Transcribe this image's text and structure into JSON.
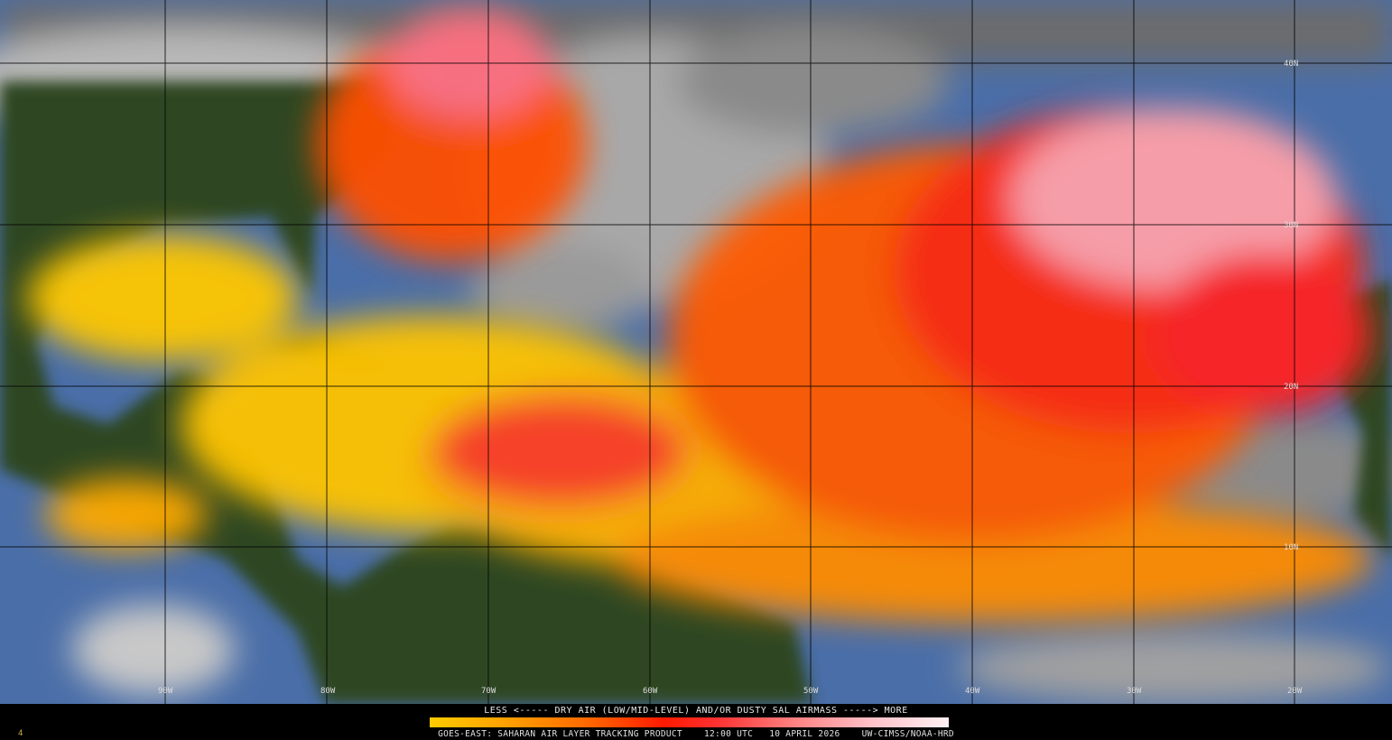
{
  "product": {
    "legend_title": "LESS <----- DRY AIR (LOW/MID-LEVEL) AND/OR DUSTY SAL AIRMASS -----> MORE",
    "credit": "GOES-EAST: SAHARAN AIR LAYER TRACKING PRODUCT    12:00 UTC   10 APRIL 2026    UW-CIMSS/NOAA-HRD",
    "corner_mark": "4"
  },
  "colorbar": {
    "low_label": "LESS",
    "high_label": "MORE",
    "colors": [
      "#ffcc00",
      "#ffa000",
      "#ff6a00",
      "#ff1a00",
      "#ff8080",
      "#ffc0c8",
      "#fff0f2"
    ]
  },
  "grid": {
    "latitude_labels": [
      "40N",
      "30N",
      "20N",
      "10N"
    ],
    "longitude_labels": [
      "90W",
      "80W",
      "70W",
      "60W",
      "50W",
      "40W",
      "30W",
      "20W"
    ]
  },
  "colors": {
    "ocean": "#4a6ea8",
    "land": "#2e4620",
    "cloud": "#8c8c8c",
    "grid": "#000000"
  }
}
